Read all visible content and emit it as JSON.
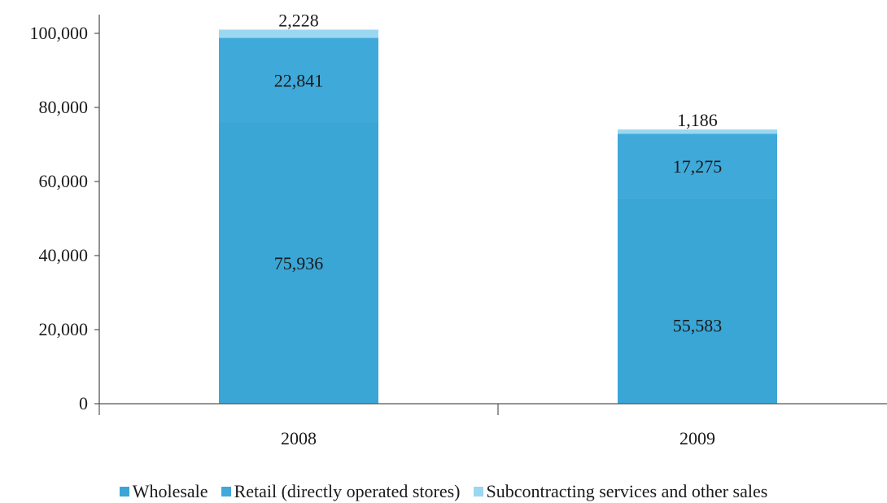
{
  "chart_data": {
    "type": "bar",
    "stacked": true,
    "categories": [
      "2008",
      "2009"
    ],
    "series": [
      {
        "name": "Wholesale",
        "values": [
          75936,
          55583
        ],
        "color": "#3aa6d6"
      },
      {
        "name": "Retail (directly operated stores)",
        "values": [
          22841,
          17275
        ],
        "color": "#3fa9d9"
      },
      {
        "name": "Subcontracting services and other sales",
        "values": [
          2228,
          1186
        ],
        "color": "#9ad7f1"
      }
    ],
    "data_labels": [
      [
        "75,936",
        "55,583"
      ],
      [
        "22,841",
        "17,275"
      ],
      [
        "2,228",
        "1,186"
      ]
    ],
    "y_ticks": [
      "0",
      "20,000",
      "40,000",
      "60,000",
      "80,000",
      "100,000"
    ],
    "y_tick_values": [
      0,
      20000,
      40000,
      60000,
      80000,
      100000
    ],
    "ylim": [
      0,
      100000
    ],
    "grid": false,
    "legend_position": "bottom"
  }
}
